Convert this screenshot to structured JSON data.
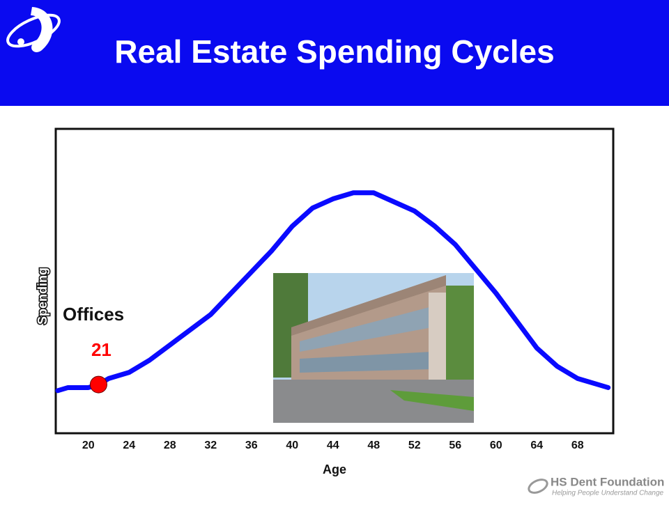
{
  "chart_data": {
    "type": "line",
    "title": "Real Estate Spending Cycles",
    "x_label": "Age",
    "y_label": "Spending",
    "annotation": "Offices",
    "x": [
      17,
      18,
      20,
      21,
      22,
      24,
      26,
      28,
      30,
      32,
      34,
      36,
      38,
      40,
      42,
      44,
      46,
      47,
      48,
      50,
      52,
      54,
      56,
      58,
      60,
      62,
      64,
      66,
      68,
      70,
      71
    ],
    "series": [
      {
        "color": "#0a0aff",
        "values": [
          14,
          15,
          15,
          16,
          18,
          20,
          24,
          29,
          34,
          39,
          46,
          53,
          60,
          68,
          74,
          77,
          79,
          79,
          79,
          76,
          73,
          68,
          62,
          54,
          46,
          37,
          28,
          22,
          18,
          16,
          15
        ]
      }
    ],
    "highlight": {
      "x": 21,
      "y": 16,
      "color": "#ff0000"
    },
    "xlim": [
      16.8,
      71.5
    ],
    "ylim": [
      0,
      100
    ],
    "xticks": [
      20,
      24,
      28,
      32,
      36,
      40,
      44,
      48,
      52,
      56,
      60,
      64,
      68
    ],
    "footer": {
      "name": "HS Dent Foundation",
      "tagline": "Helping People Understand Change"
    }
  }
}
